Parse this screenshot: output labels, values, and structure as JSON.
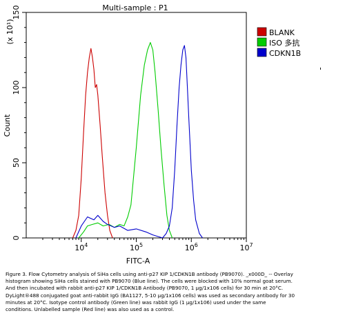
{
  "chart_data": {
    "type": "line",
    "title": "Multi-sample : P1",
    "xlabel": "FITC-A",
    "ylabel": "Count",
    "y_multiplier_label": "(x 10¹)",
    "x_scale": "log",
    "xlim": [
      1000,
      10000000
    ],
    "ylim": [
      0,
      150
    ],
    "x_ticks": [
      {
        "value": 10000,
        "base": "10",
        "exp": "4"
      },
      {
        "value": 100000,
        "base": "10",
        "exp": "5"
      },
      {
        "value": 1000000,
        "base": "10",
        "exp": "6"
      },
      {
        "value": 10000000,
        "base": "10",
        "exp": "7"
      }
    ],
    "y_ticks": [
      0,
      50,
      100,
      150
    ],
    "legend_position": "right",
    "grid": false,
    "series": [
      {
        "name": "BLANK",
        "color": "#cc0000",
        "x": [
          7000,
          8000,
          9000,
          10000,
          11000,
          12000,
          13000,
          14000,
          15000,
          16000,
          17000,
          18000,
          19000,
          20000,
          22000,
          24000,
          27000,
          30000,
          33000,
          37000
        ],
        "y": [
          0,
          5,
          15,
          40,
          70,
          95,
          110,
          120,
          126,
          120,
          112,
          100,
          102,
          95,
          75,
          55,
          30,
          15,
          5,
          0
        ]
      },
      {
        "name": "ISO 多抗",
        "color": "#00cc00",
        "x": [
          9000,
          11000,
          13000,
          16000,
          20000,
          25000,
          32000,
          40000,
          50000,
          60000,
          70000,
          80000,
          100000,
          120000,
          140000,
          160000,
          180000,
          200000,
          220000,
          250000,
          280000,
          320000,
          360000,
          400000,
          450000
        ],
        "y": [
          0,
          4,
          8,
          9,
          10,
          8,
          9,
          7,
          9,
          8,
          14,
          22,
          60,
          95,
          115,
          125,
          130,
          125,
          110,
          85,
          60,
          35,
          15,
          5,
          0
        ]
      },
      {
        "name": "CDKN1B",
        "color": "#0000cc",
        "x": [
          8000,
          10000,
          13000,
          17000,
          20000,
          25000,
          30000,
          40000,
          50000,
          70000,
          100000,
          150000,
          200000,
          300000,
          350000,
          400000,
          450000,
          500000,
          550000,
          600000,
          650000,
          700000,
          750000,
          800000,
          850000,
          900000,
          1000000,
          1100000,
          1200000,
          1400000,
          1600000
        ],
        "y": [
          0,
          8,
          14,
          12,
          15,
          11,
          9,
          7,
          8,
          5,
          6,
          4,
          2,
          0,
          3,
          8,
          20,
          45,
          75,
          100,
          115,
          125,
          128,
          120,
          100,
          80,
          45,
          25,
          12,
          3,
          0
        ]
      }
    ]
  },
  "caption": [
    "Figure 3. Flow Cytometry analysis of SiHa cells using anti-p27 KIP 1/CDKN1B antibody (PB9070). _x000D_ -- Overlay",
    "histogram showing SiHa cells stained with PB9070 (Blue line). The cells were blocked with 10% normal goat serum.",
    "And then incubated with rabbit anti-p27 KIP 1/CDKN1B Antibody (PB9070, 1 μg/1x106 cells) for 30 min at 20°C.",
    "DyLight®488 conjugated goat anti-rabbit IgG (BA1127, 5-10 μg/1x106 cells) was used as secondary antibody for 30",
    "minutes at 20°C. Isotype control antibody (Green line) was rabbit IgG (1 μg/1x106) used under the same",
    "conditions. Unlabelled sample (Red line) was also used as a control."
  ]
}
